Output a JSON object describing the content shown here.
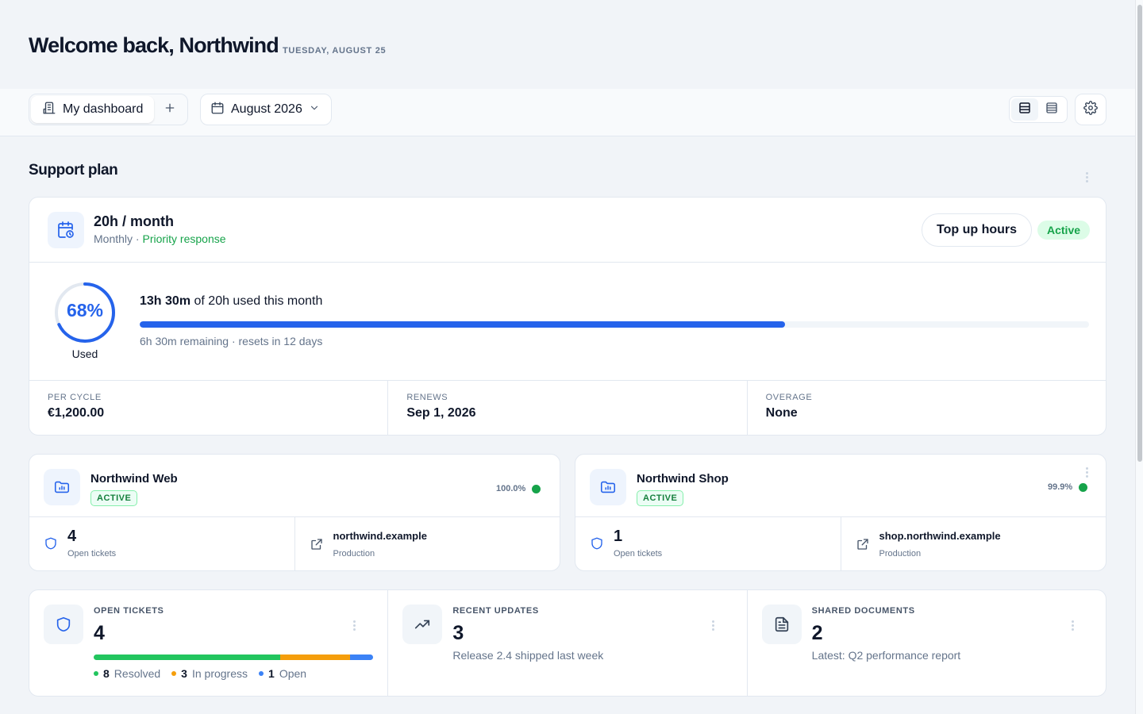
{
  "header": {
    "welcome": "Welcome back, Northwind",
    "date": "TUESDAY, AUGUST 25"
  },
  "toolbar": {
    "dashboard_tab": "My dashboard",
    "month": "August 2026",
    "icons": [
      "dashboard-icon",
      "plus-icon",
      "calendar-icon",
      "chevron-down-icon",
      "grid-view-icon",
      "list-view-icon",
      "gear-icon"
    ]
  },
  "support_plan": {
    "section_title": "Support plan",
    "hours": "20h / month",
    "cadence": "Monthly",
    "separator": " · ",
    "tier": "Priority response",
    "top_up": "Top up hours",
    "status": "Active",
    "percent_label": "68%",
    "percent_used": 68,
    "used_caption": "Used",
    "used": "13h 30m",
    "used_rest": "of 20h used this month",
    "progress": 0.68,
    "remaining": "6h 30m remaining · resets in 12 days",
    "stats": [
      {
        "label": "PER CYCLE",
        "value": "€1,200.00"
      },
      {
        "label": "RENEWS",
        "value": "Sep 1, 2026"
      },
      {
        "label": "OVERAGE",
        "value": "None"
      }
    ]
  },
  "projects": [
    {
      "name": "Northwind Web",
      "badge": "ACTIVE",
      "uptime": "100.0%",
      "open_tickets": "4",
      "open_tickets_label": "Open tickets",
      "domain": "northwind.example",
      "environment": "Production"
    },
    {
      "name": "Northwind Shop",
      "badge": "ACTIVE",
      "uptime": "99.9%",
      "open_tickets": "1",
      "open_tickets_label": "Open tickets",
      "domain": "shop.northwind.example",
      "environment": "Production"
    }
  ],
  "summary": {
    "open_tickets": {
      "label": "OPEN TICKETS",
      "value": "4",
      "breakdown": [
        {
          "count": "8",
          "label": "Resolved",
          "color": "#22c55e",
          "share": 0.667
        },
        {
          "count": "3",
          "label": "In progress",
          "color": "#f59e0b",
          "share": 0.25
        },
        {
          "count": "1",
          "label": "Open",
          "color": "#3b82f6",
          "share": 0.083
        }
      ]
    },
    "recent_updates": {
      "label": "RECENT UPDATES",
      "value": "3",
      "sub": "Release 2.4 shipped last week"
    },
    "shared_documents": {
      "label": "SHARED DOCUMENTS",
      "value": "2",
      "sub": "Latest: Q2 performance report"
    }
  },
  "colors": {
    "accent": "#2563eb",
    "success": "#16a34a",
    "background": "#f1f4f8"
  }
}
